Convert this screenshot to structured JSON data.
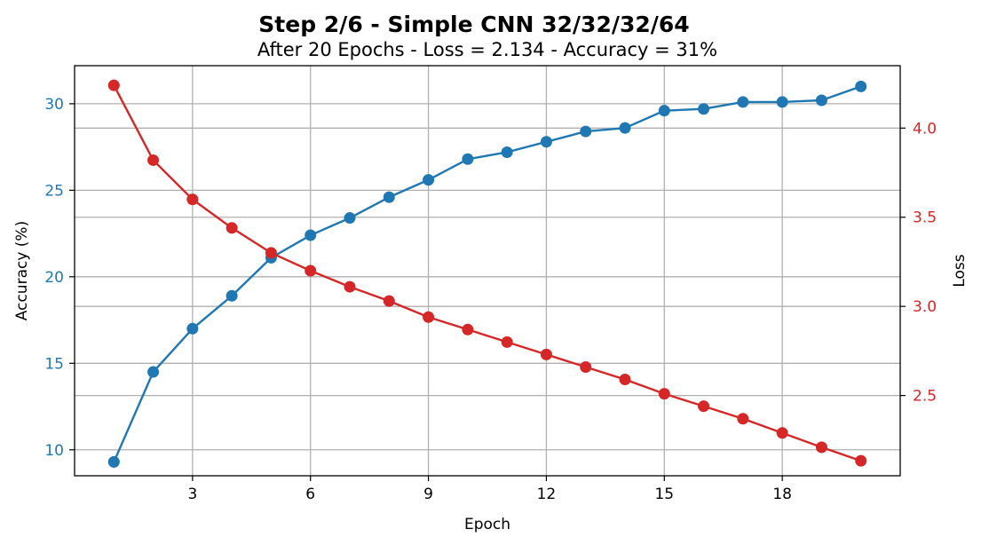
{
  "chart_data": {
    "type": "line",
    "title": "Step 2/6 - Simple CNN 32/32/32/64",
    "subtitle": "After 20 Epochs - Loss = 2.134 - Accuracy = 31%",
    "xlabel": "Epoch",
    "ylabel_left": "Accuracy (%)",
    "ylabel_right": "Loss",
    "x": [
      1,
      2,
      3,
      4,
      5,
      6,
      7,
      8,
      9,
      10,
      11,
      12,
      13,
      14,
      15,
      16,
      17,
      18,
      19,
      20
    ],
    "x_ticks": [
      3,
      6,
      9,
      12,
      15,
      18
    ],
    "xlim": [
      0.0,
      21.0
    ],
    "grid": true,
    "series": [
      {
        "axis": "left",
        "color": "#1f77b4",
        "values": [
          9.3,
          14.5,
          17.0,
          18.9,
          21.1,
          22.4,
          23.4,
          24.6,
          25.6,
          26.8,
          27.2,
          27.8,
          28.4,
          28.6,
          29.6,
          29.7,
          30.1,
          30.1,
          30.2,
          31.0
        ]
      },
      {
        "axis": "right",
        "color": "#d62728",
        "values": [
          4.24,
          3.82,
          3.6,
          3.44,
          3.3,
          3.2,
          3.11,
          3.03,
          2.94,
          2.87,
          2.8,
          2.73,
          2.66,
          2.59,
          2.51,
          2.44,
          2.37,
          2.29,
          2.21,
          2.134
        ]
      }
    ],
    "ylim_left": [
      8.5,
      32.2
    ],
    "y_ticks_left": [
      10,
      15,
      20,
      25,
      30
    ],
    "ylim_right": [
      2.05,
      4.35
    ],
    "y_ticks_right": [
      2.5,
      3.0,
      3.5,
      4.0
    ],
    "left_tick_color": "#1f77b4",
    "right_tick_color": "#d62728"
  }
}
